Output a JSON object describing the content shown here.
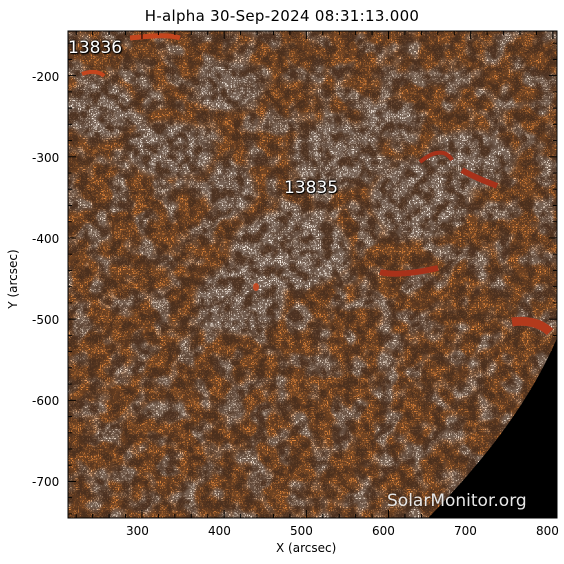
{
  "figure": {
    "title": "H-alpha 30-Sep-2024 08:31:13.000",
    "xlabel": "X (arcsec)",
    "ylabel": "Y (arcsec)",
    "x_ticks": [
      "300",
      "400",
      "500",
      "600",
      "700",
      "800"
    ],
    "y_ticks": [
      "-200",
      "-300",
      "-400",
      "-500",
      "-600",
      "-700"
    ],
    "regions": [
      "13836",
      "13835"
    ],
    "watermark": "SolarMonitor.org"
  },
  "axes": {
    "x_range": [
      210,
      805
    ],
    "y_range": [
      -145,
      -745
    ],
    "x_tick_values": [
      300,
      400,
      500,
      600,
      700,
      800
    ],
    "y_tick_values": [
      -200,
      -300,
      -400,
      -500,
      -600,
      -700
    ]
  },
  "colors": {
    "background": "#ffffff",
    "chromosphere_base": "#e88a3c",
    "plage_bright": "#fff8f0",
    "filament_dark": "#a8321a",
    "off_limb": "#000000",
    "noise_dark": "#2a1308"
  }
}
